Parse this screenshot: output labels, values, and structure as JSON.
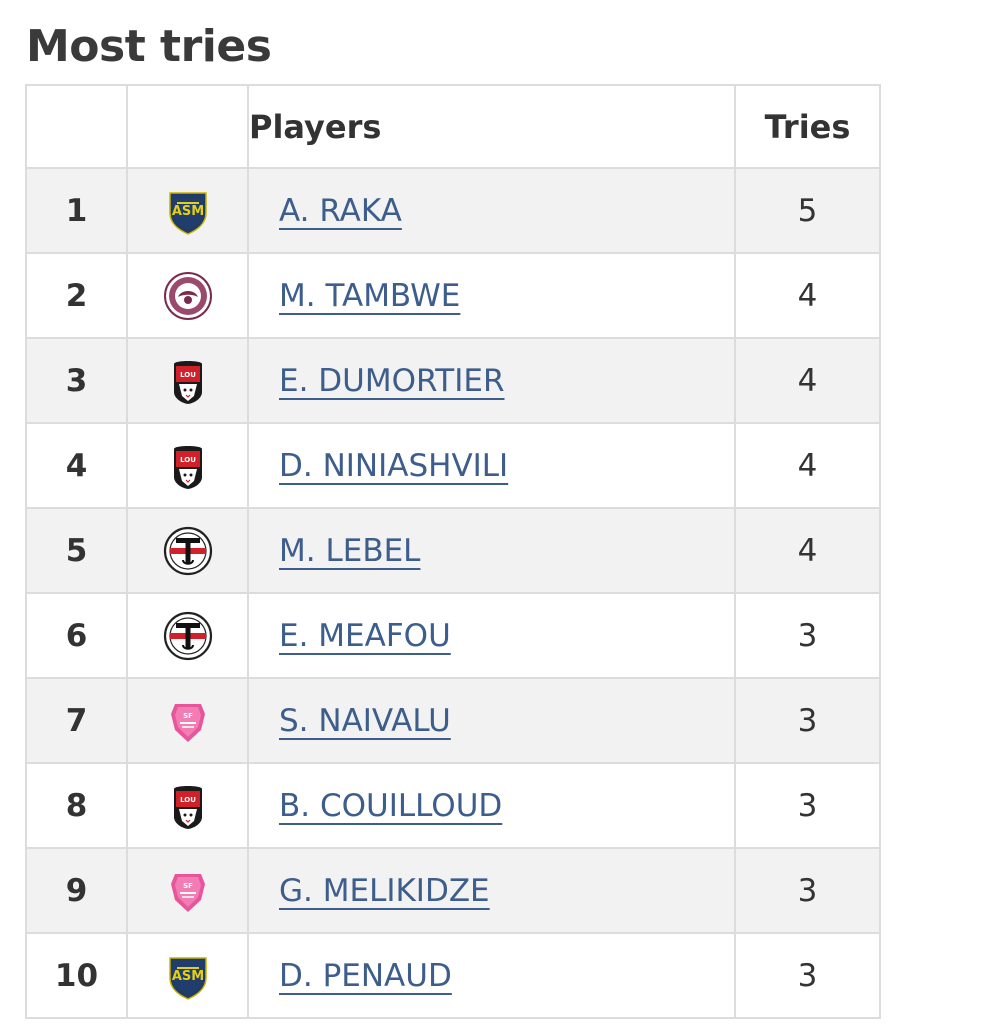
{
  "page": {
    "title": "Most tries"
  },
  "table": {
    "headers": {
      "rank": "",
      "club": "",
      "players": "Players",
      "tries": "Tries"
    },
    "rows": [
      {
        "rank": "1",
        "club_icon": "clermont-shield-icon",
        "player": "A. RAKA",
        "tries": "5"
      },
      {
        "rank": "2",
        "club_icon": "bordeaux-roundel-icon",
        "player": "M. TAMBWE",
        "tries": "4"
      },
      {
        "rank": "3",
        "club_icon": "lou-shield-icon",
        "player": "E. DUMORTIER",
        "tries": "4"
      },
      {
        "rank": "4",
        "club_icon": "lou-shield-icon",
        "player": "D. NINIASHVILI",
        "tries": "4"
      },
      {
        "rank": "5",
        "club_icon": "toulouse-roundel-icon",
        "player": "M. LEBEL",
        "tries": "4"
      },
      {
        "rank": "6",
        "club_icon": "toulouse-roundel-icon",
        "player": "E. MEAFOU",
        "tries": "3"
      },
      {
        "rank": "7",
        "club_icon": "stade-francais-badge-icon",
        "player": "S. NAIVALU",
        "tries": "3"
      },
      {
        "rank": "8",
        "club_icon": "lou-shield-icon",
        "player": "B. COUILLOUD",
        "tries": "3"
      },
      {
        "rank": "9",
        "club_icon": "stade-francais-badge-icon",
        "player": "G. MELIKIDZE",
        "tries": "3"
      },
      {
        "rank": "10",
        "club_icon": "clermont-shield-icon",
        "player": "D. PENAUD",
        "tries": "3"
      }
    ]
  },
  "colors": {
    "link": "#3d5d8c",
    "row_stripe": "#f2f2f2",
    "border": "#dcdcdc",
    "title": "#3a3a3a"
  }
}
